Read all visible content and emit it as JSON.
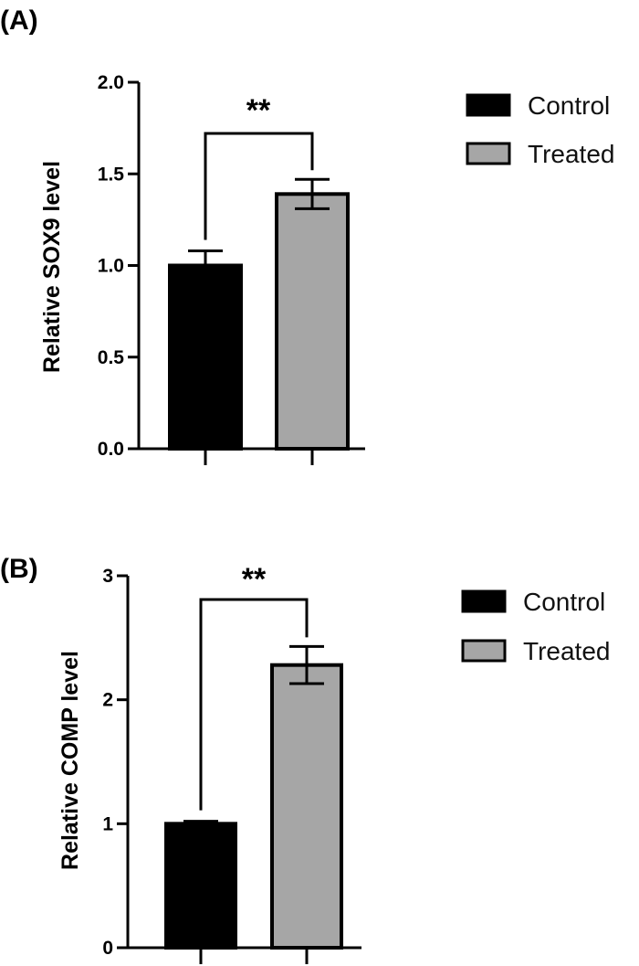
{
  "chart_data": [
    {
      "panel_label": "(A)",
      "type": "bar",
      "categories": [
        "Control",
        "Treated"
      ],
      "values": [
        1.0,
        1.39
      ],
      "errors": [
        0.08,
        0.08
      ],
      "colors": [
        "#000000",
        "#a6a6a6"
      ],
      "ylabel": "Relative SOX9 level",
      "ylim": [
        0,
        2.0
      ],
      "yticks": [
        0.0,
        0.5,
        1.0,
        1.5,
        2.0
      ],
      "ytick_labels": [
        "0.0",
        "0.5",
        "1.0",
        "1.5",
        "2.0"
      ],
      "significance": "**",
      "legend": {
        "position": "top-right",
        "entries": [
          "Control",
          "Treated"
        ]
      }
    },
    {
      "panel_label": "(B)",
      "type": "bar",
      "categories": [
        "Control",
        "Treated"
      ],
      "values": [
        1.0,
        2.28
      ],
      "errors": [
        0.02,
        0.15
      ],
      "colors": [
        "#000000",
        "#a6a6a6"
      ],
      "ylabel": "Relative COMP level",
      "ylim": [
        0,
        3
      ],
      "yticks": [
        0,
        1,
        2,
        3
      ],
      "ytick_labels": [
        "0",
        "1",
        "2",
        "3"
      ],
      "significance": "**",
      "legend": {
        "position": "top-right",
        "entries": [
          "Control",
          "Treated"
        ]
      }
    }
  ]
}
